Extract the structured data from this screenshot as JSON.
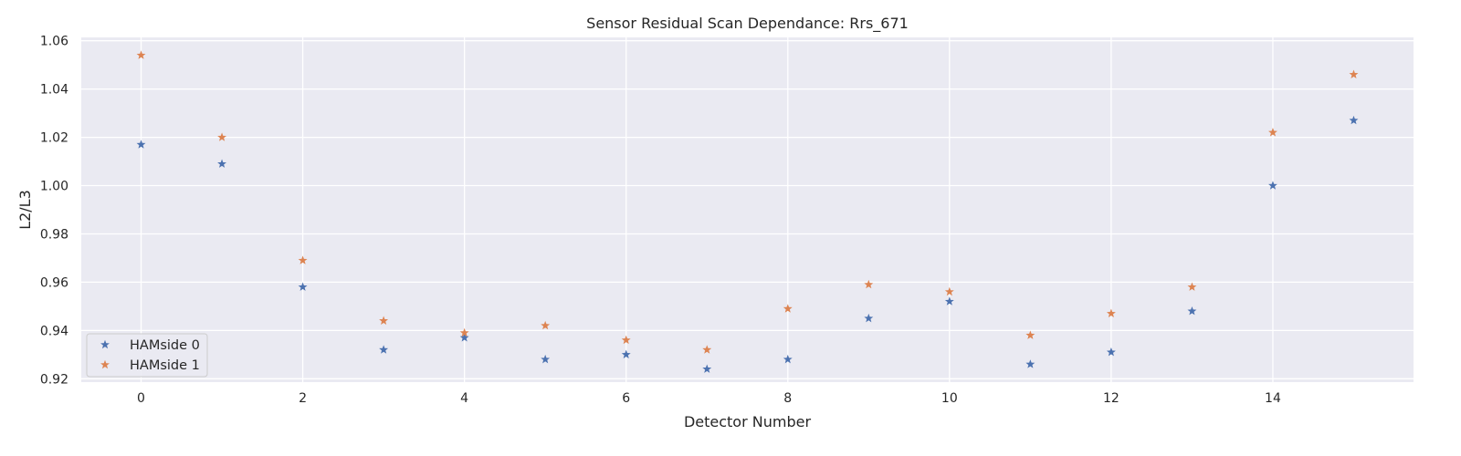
{
  "chart_data": {
    "type": "scatter",
    "title": "Sensor Residual Scan Dependance: Rrs_671",
    "xlabel": "Detector Number",
    "ylabel": "L2/L3",
    "xlim": [
      -0.74,
      15.74
    ],
    "ylim": [
      0.9186,
      1.0614
    ],
    "xticks": [
      0,
      2,
      4,
      6,
      8,
      10,
      12,
      14
    ],
    "yticks": [
      0.92,
      0.94,
      0.96,
      0.98,
      1.0,
      1.02,
      1.04,
      1.06
    ],
    "ytick_labels": [
      "0.92",
      "0.94",
      "0.96",
      "0.98",
      "1.00",
      "1.02",
      "1.04",
      "1.06"
    ],
    "grid": true,
    "legend_position": "lower-left",
    "marker": "star",
    "x": [
      0,
      1,
      2,
      3,
      4,
      5,
      6,
      7,
      8,
      9,
      10,
      11,
      12,
      13,
      14,
      15
    ],
    "series": [
      {
        "name": "HAMside 0",
        "color": "#4c72b0",
        "values": [
          1.017,
          1.009,
          0.958,
          0.932,
          0.937,
          0.928,
          0.93,
          0.924,
          0.928,
          0.945,
          0.952,
          0.926,
          0.931,
          0.948,
          1.0,
          1.027
        ]
      },
      {
        "name": "HAMside 1",
        "color": "#dd8452",
        "values": [
          1.054,
          1.02,
          0.969,
          0.944,
          0.939,
          0.942,
          0.936,
          0.932,
          0.949,
          0.959,
          0.956,
          0.938,
          0.947,
          0.958,
          1.022,
          1.046
        ]
      }
    ]
  },
  "colors": {
    "plot_background": "#eaeaf2",
    "grid": "#ffffff"
  }
}
